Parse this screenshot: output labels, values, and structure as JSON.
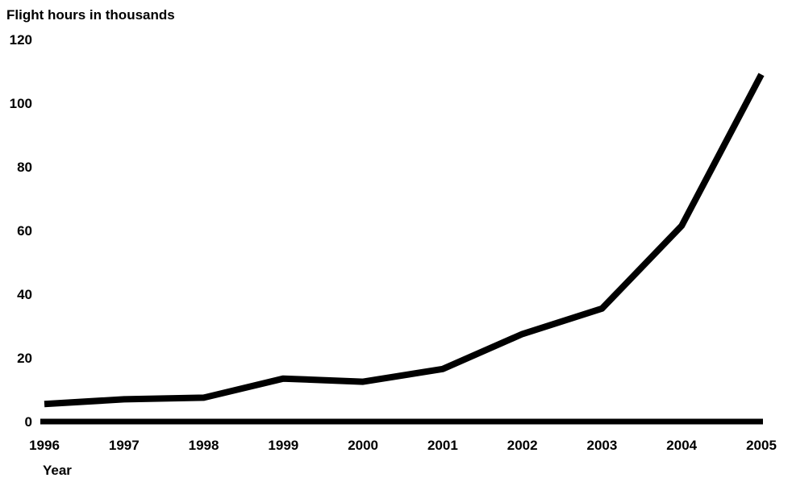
{
  "chart_data": {
    "type": "line",
    "title": "",
    "ylabel": "Flight hours in thousands",
    "xlabel": "Year",
    "x": [
      "1996",
      "1997",
      "1998",
      "1999",
      "2000",
      "2001",
      "2002",
      "2003",
      "2004",
      "2005"
    ],
    "series": [
      {
        "values": [
          5.5,
          7,
          7.5,
          13.5,
          12.5,
          16.5,
          27.5,
          35.5,
          61.5,
          109
        ]
      }
    ],
    "ylim": [
      0,
      120
    ],
    "yticks": [
      "0",
      "20",
      "40",
      "60",
      "80",
      "100",
      "120"
    ],
    "grid": false,
    "legend": "none",
    "colors": {
      "line": "#000000",
      "axis": "#000000",
      "background": "#ffffff"
    }
  }
}
